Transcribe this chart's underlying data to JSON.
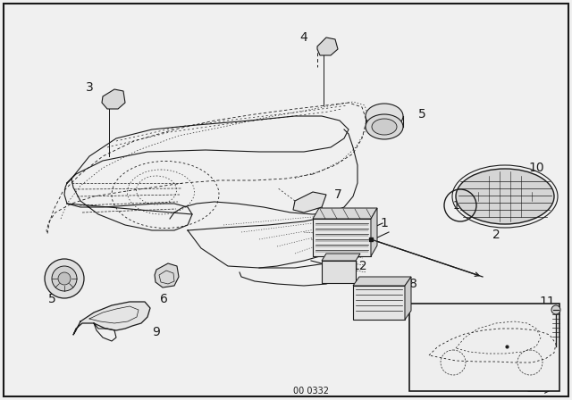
{
  "bg_color": "#f0f0f0",
  "line_color": "#1a1a1a",
  "footnote": "00 0332",
  "border_lw": 1.5,
  "parts_font_size": 10,
  "label_font_size": 9
}
